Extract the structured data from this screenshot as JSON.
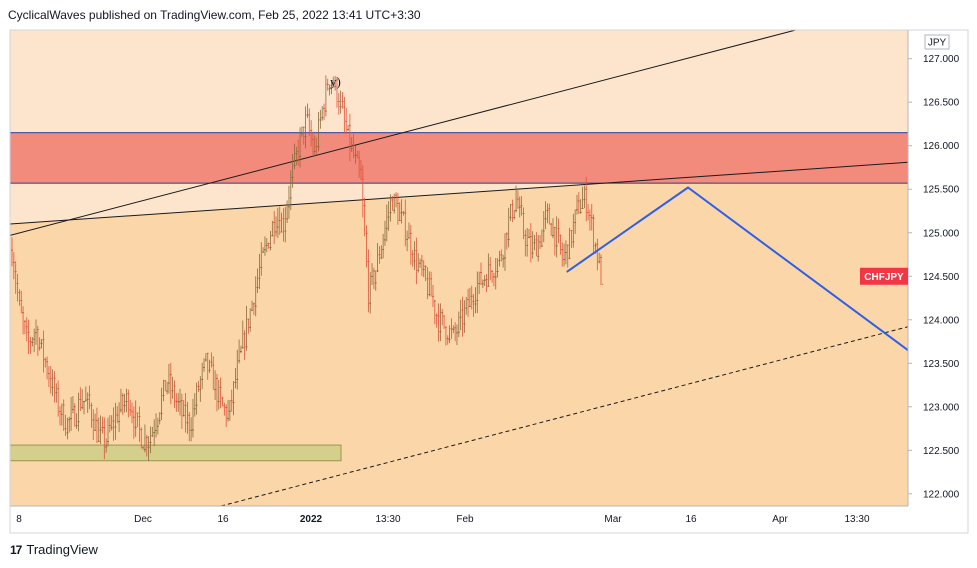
{
  "header": {
    "text": "CyclicalWaves published on TradingView.com, Feb 25, 2022 13:41 UTC+3:30"
  },
  "footer": {
    "logo_glyph": "17",
    "brand": "TradingView"
  },
  "colors": {
    "background": "#fde5cd",
    "resistance_zone": "#f28b7c",
    "support_zone": "#d4cf8a",
    "up_candle": "#8a6a3c",
    "down_candle": "#e0523a",
    "projection": "#2f5fe6",
    "trendline": "#1a1a1a",
    "badge": "#f23645"
  },
  "chart_data": {
    "type": "candlestick",
    "symbol": "CHFJPY",
    "unit": "JPY",
    "y_ticks": [
      "127.000",
      "126.500",
      "126.000",
      "125.500",
      "125.000",
      "124.500",
      "124.000",
      "123.500",
      "123.000",
      "122.500",
      "122.000"
    ],
    "y_range": [
      121.86,
      127.33
    ],
    "x_ticks": [
      {
        "label": "8",
        "bold": false
      },
      {
        "label": "Dec",
        "bold": false
      },
      {
        "label": "16",
        "bold": false
      },
      {
        "label": "2022",
        "bold": true
      },
      {
        "label": "13:30",
        "bold": false
      },
      {
        "label": "Feb",
        "bold": false
      },
      {
        "label": "Mar",
        "bold": false
      },
      {
        "label": "16",
        "bold": false
      },
      {
        "label": "Apr",
        "bold": false
      },
      {
        "label": "13:30",
        "bold": false
      }
    ],
    "last_price_label": "CHFJPY",
    "last_price": 124.5,
    "annotation": "y)",
    "resistance_zone": [
      125.57,
      126.15
    ],
    "support_zone": [
      122.38,
      122.56
    ],
    "price_path": [
      124.8,
      124.1,
      123.7,
      123.9,
      123.6,
      123.3,
      123.0,
      122.8,
      122.9,
      123.1,
      123.0,
      122.7,
      122.6,
      122.8,
      123.0,
      123.1,
      122.8,
      122.6,
      122.7,
      123.0,
      123.3,
      123.1,
      122.9,
      122.8,
      123.2,
      123.5,
      123.3,
      123.0,
      122.9,
      123.4,
      123.8,
      124.2,
      124.6,
      124.9,
      125.2,
      125.1,
      125.6,
      126.0,
      126.3,
      125.9,
      126.4,
      126.8,
      126.6,
      126.2,
      125.9,
      125.6,
      124.3,
      124.6,
      125.0,
      125.4,
      125.2,
      125.0,
      124.7,
      124.5,
      124.3,
      124.0,
      123.9,
      123.8,
      124.0,
      124.2,
      124.4,
      124.5,
      124.6,
      124.7,
      125.1,
      125.4,
      125.0,
      124.8,
      124.9,
      125.2,
      125.0,
      124.7,
      124.9,
      125.3,
      125.4,
      125.0,
      124.5
    ],
    "projection_path": [
      {
        "x": 0.62,
        "y": 124.55
      },
      {
        "x": 0.755,
        "y": 125.52
      },
      {
        "x": 1.0,
        "y": 123.65
      }
    ],
    "trendlines": [
      {
        "style": "solid",
        "from": {
          "x": 0.0,
          "y": 124.97
        },
        "to": {
          "x": 0.875,
          "y": 127.33
        }
      },
      {
        "style": "solid",
        "from": {
          "x": 0.0,
          "y": 125.1
        },
        "to": {
          "x": 1.0,
          "y": 125.81
        }
      },
      {
        "style": "dashed",
        "from": {
          "x": 0.235,
          "y": 121.86
        },
        "to": {
          "x": 1.0,
          "y": 123.92
        }
      }
    ],
    "xlabel": "",
    "ylabel": ""
  }
}
